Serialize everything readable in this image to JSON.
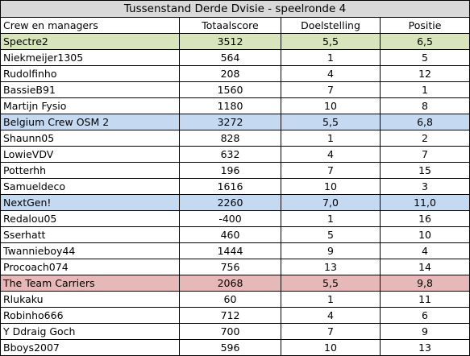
{
  "title": "Tussenstand Derde Dvisie - speelronde 4",
  "headers": [
    "Crew en managers",
    "Totaalscore",
    "Doelstelling",
    "Positie"
  ],
  "rows": [
    {
      "type": "team",
      "color": "#d8e4bc",
      "name": "Spectre2",
      "score": "3512",
      "doel": "5,5",
      "pos": "6,5"
    },
    {
      "type": "manager",
      "name": "Niekmeijer1305",
      "score": "564",
      "doel": "1",
      "pos": "5"
    },
    {
      "type": "manager",
      "name": "Rudolfinho",
      "score": "208",
      "doel": "4",
      "pos": "12"
    },
    {
      "type": "manager",
      "name": "BassieB91",
      "score": "1560",
      "doel": "7",
      "pos": "1"
    },
    {
      "type": "manager",
      "name": "Martijn Fysio",
      "score": "1180",
      "doel": "10",
      "pos": "8"
    },
    {
      "type": "team",
      "color": "#c5d9f1",
      "name": "Belgium Crew OSM 2",
      "score": "3272",
      "doel": "5,5",
      "pos": "6,8"
    },
    {
      "type": "manager",
      "name": "Shaunn05",
      "score": "828",
      "doel": "1",
      "pos": "2"
    },
    {
      "type": "manager",
      "name": "LowieVDV",
      "score": "632",
      "doel": "4",
      "pos": "7"
    },
    {
      "type": "manager",
      "name": "Potterhh",
      "score": "196",
      "doel": "7",
      "pos": "15"
    },
    {
      "type": "manager",
      "name": "Samueldeco",
      "score": "1616",
      "doel": "10",
      "pos": "3"
    },
    {
      "type": "team",
      "color": "#c5d9f1",
      "name": "NextGen!",
      "score": "2260",
      "doel": "7,0",
      "pos": "11,0"
    },
    {
      "type": "manager",
      "name": "Redalou05",
      "score": "-400",
      "doel": "1",
      "pos": "16"
    },
    {
      "type": "manager",
      "name": "Sserhatt",
      "score": "460",
      "doel": "5",
      "pos": "10"
    },
    {
      "type": "manager",
      "name": "Twannieboy44",
      "score": "1444",
      "doel": "9",
      "pos": "4"
    },
    {
      "type": "manager",
      "name": "Procoach074",
      "score": "756",
      "doel": "13",
      "pos": "14"
    },
    {
      "type": "team",
      "color": "#e6b8b7",
      "name": "The Team Carriers",
      "score": "2068",
      "doel": "5,5",
      "pos": "9,8"
    },
    {
      "type": "manager",
      "name": "Rlukaku",
      "score": "60",
      "doel": "1",
      "pos": "11"
    },
    {
      "type": "manager",
      "name": "Robinho666",
      "score": "712",
      "doel": "4",
      "pos": "6"
    },
    {
      "type": "manager",
      "name": "Y Ddraig Goch",
      "score": "700",
      "doel": "7",
      "pos": "9"
    },
    {
      "type": "manager",
      "name": "Bboys2007",
      "score": "596",
      "doel": "10",
      "pos": "13"
    }
  ]
}
